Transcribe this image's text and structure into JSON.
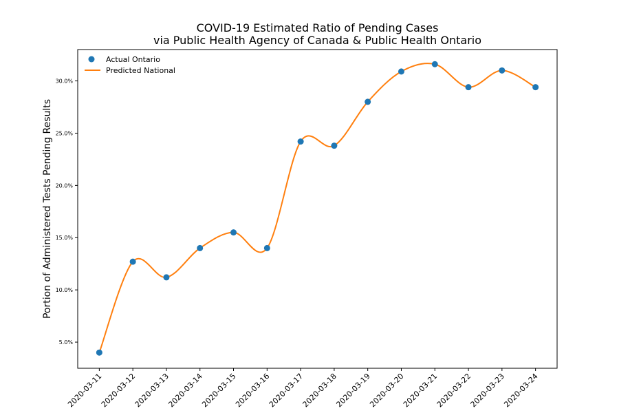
{
  "chart_data": {
    "type": "line",
    "title_lines": [
      "COVID-19 Estimated Ratio of Pending Cases",
      "via Public Health Agency of Canada & Public Health Ontario"
    ],
    "xlabel": "",
    "ylabel": "Portion of Administered Tests Pending Results",
    "x": [
      "2020-03-11",
      "2020-03-12",
      "2020-03-13",
      "2020-03-14",
      "2020-03-15",
      "2020-03-16",
      "2020-03-17",
      "2020-03-18",
      "2020-03-19",
      "2020-03-20",
      "2020-03-21",
      "2020-03-22",
      "2020-03-23",
      "2020-03-24"
    ],
    "ylim": [
      2.5,
      33.0
    ],
    "yticks": [
      5.0,
      10.0,
      15.0,
      20.0,
      25.0,
      30.0
    ],
    "ytick_labels": [
      "5.0%",
      "10.0%",
      "15.0%",
      "20.0%",
      "25.0%",
      "30.0%"
    ],
    "grid": false,
    "legend_position": "top-left",
    "series": [
      {
        "name": "Actual Ontario",
        "kind": "scatter",
        "color": "#1f77b4",
        "values": [
          4.0,
          12.7,
          11.2,
          14.0,
          15.5,
          14.0,
          24.2,
          23.8,
          28.0,
          30.9,
          31.6,
          29.4,
          31.0,
          29.4
        ]
      },
      {
        "name": "Predicted National",
        "kind": "line",
        "color": "#ff7f0e",
        "values": [
          4.0,
          12.7,
          11.2,
          14.0,
          15.5,
          14.0,
          24.2,
          23.8,
          28.0,
          30.9,
          31.6,
          29.4,
          31.0,
          29.4
        ]
      }
    ]
  }
}
